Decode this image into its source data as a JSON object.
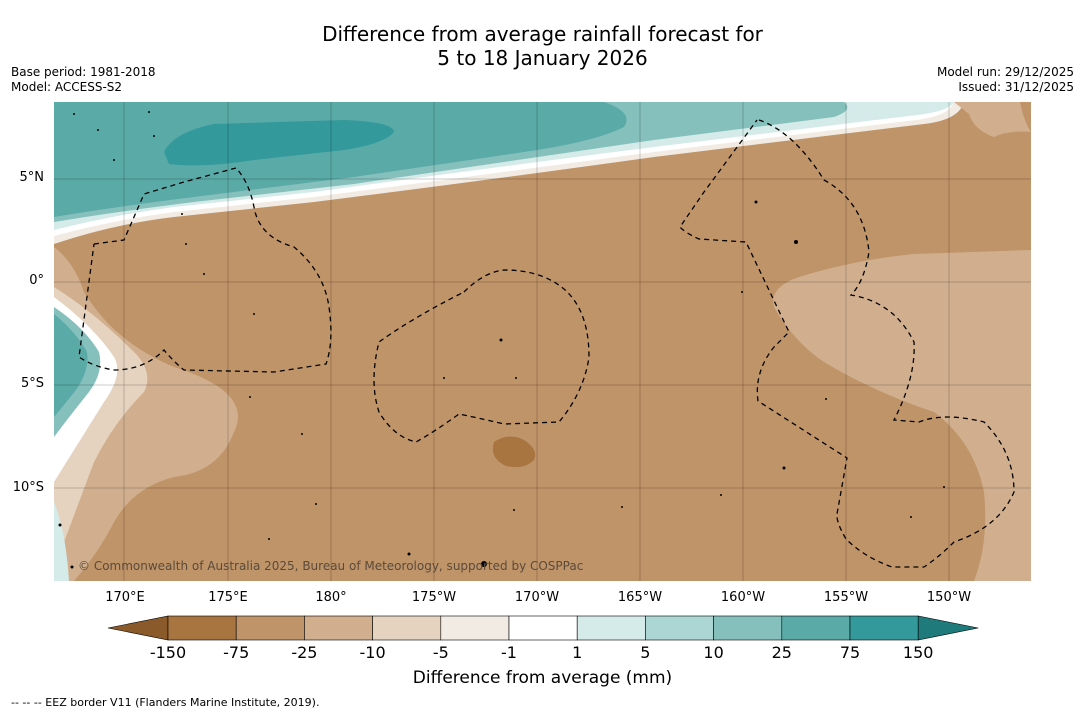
{
  "title": {
    "line1": "Difference from average rainfall forecast for",
    "line2": "5 to 18 January 2026"
  },
  "meta_left": {
    "base_period": "Base period: 1981-2018",
    "model": "Model: ACCESS-S2"
  },
  "meta_right": {
    "model_run": "Model run: 29/12/2025",
    "issued": "Issued: 31/12/2025"
  },
  "map": {
    "lat_labels": [
      "5°N",
      "0°",
      "5°S",
      "10°S"
    ],
    "lon_labels": [
      "170°E",
      "175°E",
      "180°",
      "175°W",
      "170°W",
      "165°W",
      "160°W",
      "155°W",
      "150°W"
    ],
    "copyright": "© Commonwealth of Australia 2025, Bureau of Meteorology, supported by COSPPac"
  },
  "colorbar": {
    "ticks": [
      "-150",
      "-75",
      "-25",
      "-10",
      "-5",
      "-1",
      "1",
      "5",
      "10",
      "25",
      "75",
      "150"
    ],
    "colors": [
      "#8a5a2b",
      "#a87440",
      "#bf9469",
      "#d1af8e",
      "#e5d3c0",
      "#f2ebe4",
      "#ffffff",
      "#d5ebe9",
      "#acd6d3",
      "#85c0bd",
      "#5aaaa8",
      "#33999a",
      "#1f7a7c"
    ],
    "title": "Difference from average (mm)"
  },
  "footnote": "--  --  -- EEZ border V11 (Flanders Marine Institute, 2019)."
}
